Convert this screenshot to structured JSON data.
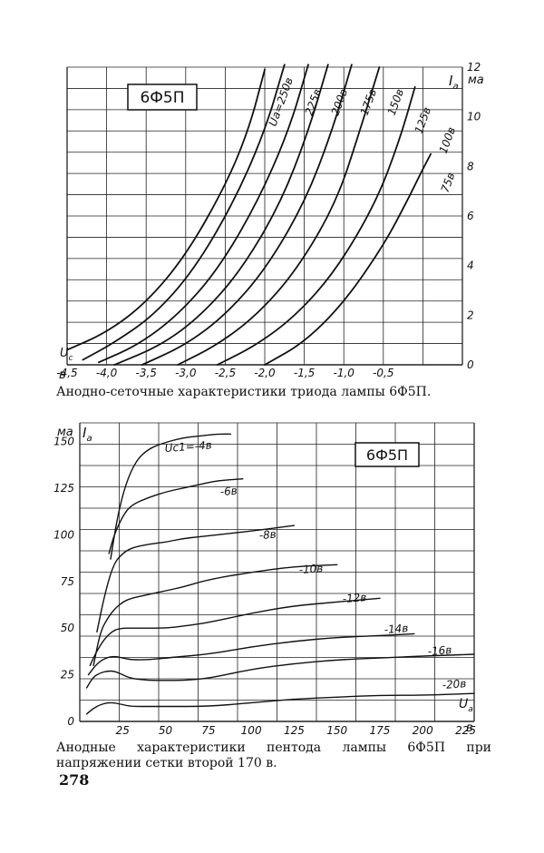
{
  "page_number": "278",
  "chart_data": [
    {
      "type": "line",
      "title": "6Ф5П",
      "caption": "Анодно-сеточные характеристики триода лампы 6Ф5П.",
      "xlabel": "U",
      "xlabel_sub": "с",
      "x_unit": "в",
      "ylabel": "I",
      "ylabel_sub": "а",
      "y_unit": "ма",
      "xlim": [
        -4.5,
        0.5
      ],
      "ylim": [
        0,
        12
      ],
      "x_ticks": [
        -4.5,
        -4.0,
        -3.5,
        -3.0,
        -2.5,
        -2.0,
        -1.5,
        -1.0,
        -0.5
      ],
      "x_tick_labels": [
        "-4,5",
        "-4,0",
        "-3,5",
        "-3,0",
        "-2,5",
        "-2,0",
        "-1,5",
        "-1,0",
        "-0,5"
      ],
      "y_ticks": [
        0,
        2,
        4,
        6,
        8,
        10,
        12
      ],
      "y_tick_labels": [
        "0",
        "2",
        "4",
        "6",
        "8",
        "10",
        "12"
      ],
      "series": [
        {
          "name": "Uа=250в",
          "label": "Uа=250в",
          "x": [
            -4.5,
            -4.0,
            -3.5,
            -3.0,
            -2.5,
            -2.2,
            -2.0
          ],
          "y": [
            0.6,
            1.3,
            2.5,
            4.4,
            7.2,
            9.5,
            11.9
          ]
        },
        {
          "name": "225в",
          "label": "225в",
          "x": [
            -4.3,
            -3.9,
            -3.4,
            -2.9,
            -2.4,
            -2.0,
            -1.75
          ],
          "y": [
            0.2,
            0.9,
            2.0,
            3.8,
            6.5,
            9.4,
            12.1
          ]
        },
        {
          "name": "200в",
          "label": "200в",
          "x": [
            -4.1,
            -3.6,
            -3.1,
            -2.6,
            -2.1,
            -1.7,
            -1.45
          ],
          "y": [
            0.1,
            0.8,
            2.0,
            3.8,
            6.5,
            9.4,
            12.1
          ]
        },
        {
          "name": "175в",
          "label": "175в",
          "x": [
            -3.9,
            -3.3,
            -2.8,
            -2.3,
            -1.8,
            -1.45,
            -1.2
          ],
          "y": [
            0.0,
            0.8,
            2.0,
            3.8,
            6.5,
            9.4,
            12.1
          ]
        },
        {
          "name": "150в",
          "label": "150в",
          "x": [
            -3.55,
            -3.0,
            -2.5,
            -2.0,
            -1.5,
            -1.15,
            -0.9
          ],
          "y": [
            0.0,
            0.8,
            2.0,
            3.8,
            6.5,
            9.4,
            12.1
          ]
        },
        {
          "name": "125в",
          "label": "125в",
          "x": [
            -3.1,
            -2.6,
            -2.1,
            -1.6,
            -1.1,
            -0.8,
            -0.55
          ],
          "y": [
            0.0,
            0.8,
            2.0,
            3.8,
            6.5,
            9.4,
            12.0
          ]
        },
        {
          "name": "100в",
          "label": "100в",
          "x": [
            -2.6,
            -2.1,
            -1.6,
            -1.1,
            -0.6,
            -0.3,
            -0.1
          ],
          "y": [
            0.0,
            0.8,
            2.0,
            3.8,
            6.5,
            9.0,
            11.2
          ]
        },
        {
          "name": "75в",
          "label": "75в",
          "x": [
            -2.0,
            -1.5,
            -1.0,
            -0.5,
            -0.2,
            0.0,
            0.1
          ],
          "y": [
            0.0,
            0.9,
            2.5,
            4.8,
            6.6,
            7.9,
            8.5
          ]
        }
      ]
    },
    {
      "type": "line",
      "title": "6Ф5П",
      "caption": "Анодные характеристики пентода лампы 6Ф5П при напряжении сетки второй 170 в.",
      "xlabel": "U",
      "xlabel_sub": "а",
      "x_unit": "в",
      "ylabel": "I",
      "ylabel_sub": "а",
      "y_unit": "ма",
      "xlim": [
        0,
        230
      ],
      "ylim": [
        0,
        160
      ],
      "x_ticks": [
        25,
        50,
        75,
        100,
        125,
        150,
        175,
        200,
        225
      ],
      "x_tick_labels": [
        "25",
        "50",
        "75",
        "100",
        "125",
        "150",
        "175",
        "200",
        "225"
      ],
      "y_ticks": [
        0,
        25,
        50,
        75,
        100,
        125,
        150
      ],
      "y_tick_labels": [
        "0",
        "25",
        "50",
        "75",
        "100",
        "125",
        "150"
      ],
      "series": [
        {
          "name": "Uс1=-4в",
          "label": "Uс1=-4в",
          "x": [
            18,
            22,
            27,
            33,
            40,
            48,
            60,
            70,
            80,
            88
          ],
          "y": [
            87,
            110,
            128,
            140,
            146,
            149,
            152,
            153,
            154,
            154
          ]
        },
        {
          "name": "-6в",
          "label": "-6в",
          "x": [
            17,
            20,
            25,
            30,
            40,
            50,
            60,
            70,
            80,
            95
          ],
          "y": [
            90,
            100,
            110,
            116,
            120,
            123,
            125,
            127,
            129,
            130
          ]
        },
        {
          "name": "-8в",
          "label": "-8в",
          "x": [
            10,
            15,
            20,
            25,
            30,
            40,
            50,
            60,
            70,
            80,
            100,
            125
          ],
          "y": [
            48,
            70,
            85,
            90,
            93,
            95,
            96,
            98,
            99,
            100,
            102,
            105
          ]
        },
        {
          "name": "-10в",
          "label": "-10в",
          "x": [
            8,
            12,
            16,
            20,
            25,
            30,
            40,
            50,
            60,
            75,
            100,
            125,
            150
          ],
          "y": [
            30,
            48,
            55,
            60,
            64,
            66,
            68,
            70,
            72,
            76,
            80,
            83,
            84
          ]
        },
        {
          "name": "-12в",
          "label": "-12в",
          "x": [
            6,
            10,
            15,
            20,
            25,
            30,
            40,
            50,
            60,
            75,
            100,
            125,
            150,
            175
          ],
          "y": [
            30,
            38,
            45,
            49,
            50,
            50,
            50,
            50,
            51,
            53,
            58,
            62,
            64,
            66
          ]
        },
        {
          "name": "-14в",
          "label": "-14в",
          "x": [
            5,
            10,
            15,
            20,
            25,
            30,
            40,
            50,
            75,
            100,
            125,
            150,
            175,
            195
          ],
          "y": [
            25,
            31,
            34,
            35,
            34,
            33,
            33,
            34,
            36,
            40,
            43,
            45,
            46,
            47
          ]
        },
        {
          "name": "-16в",
          "label": "-16в",
          "x": [
            4,
            8,
            12,
            16,
            20,
            25,
            30,
            40,
            50,
            60,
            75,
            100,
            125,
            150,
            175,
            200,
            230
          ],
          "y": [
            18,
            24,
            26,
            27,
            27,
            25,
            23,
            22,
            22,
            22,
            23,
            28,
            31,
            33,
            34,
            35,
            36
          ]
        },
        {
          "name": "-20в",
          "label": "-20в",
          "x": [
            4,
            8,
            12,
            16,
            20,
            25,
            30,
            40,
            50,
            75,
            100,
            125,
            150,
            175,
            200,
            230
          ],
          "y": [
            4,
            7,
            9,
            10,
            10,
            9,
            8,
            8,
            8,
            8,
            10,
            12,
            13,
            14,
            14,
            15
          ]
        }
      ]
    }
  ]
}
